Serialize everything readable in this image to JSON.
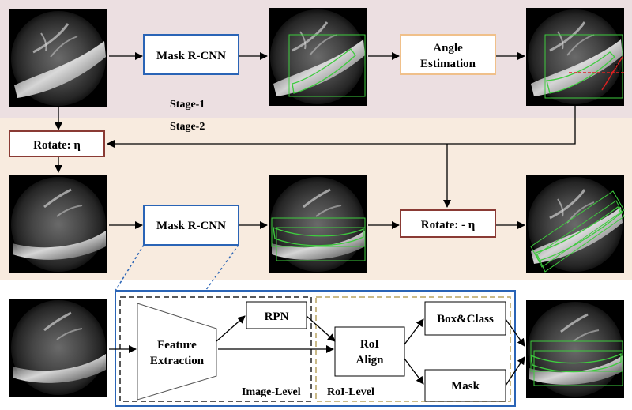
{
  "stages": {
    "stage1": "Stage-1",
    "stage2": "Stage-2"
  },
  "boxes": {
    "mask_rcnn_1": "Mask R-CNN",
    "angle_line1": "Angle",
    "angle_line2": "Estimation",
    "rotate_pos": "Rotate:  η",
    "mask_rcnn_2": "Mask R-CNN",
    "rotate_neg": "Rotate: - η",
    "rpn": "RPN",
    "feature_line1": "Feature",
    "feature_line2": "Extraction",
    "roi_line1": "RoI",
    "roi_line2": "Align",
    "box_class": "Box&Class",
    "mask": "Mask"
  },
  "regions": {
    "image_level": "Image-Level",
    "roi_level": "RoI-Level"
  },
  "annotations": {
    "angle_symbol": "η"
  },
  "colors": {
    "stage1_bg": "#ecdfe1",
    "stage2_bg": "#f8ebdf",
    "mask_rcnn_border": "#2a64b6",
    "angle_border": "#f0c08a",
    "rotate_border": "#8a3a34",
    "image_level_border": "#222222",
    "roi_level_border": "#b8a360",
    "detection_green": "#3ecb3e",
    "angle_line": "#e02020"
  }
}
